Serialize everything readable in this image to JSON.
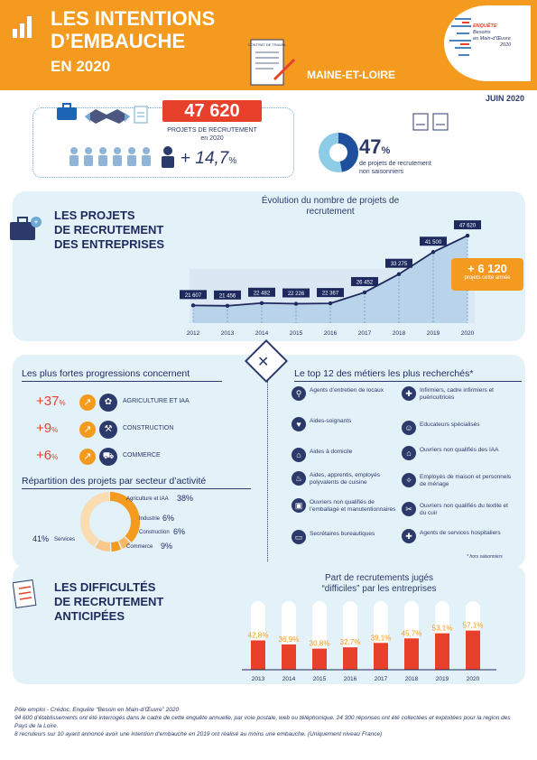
{
  "header": {
    "title_line1": "LES INTENTIONS",
    "title_line2": "D’EMBAUCHE",
    "year": "EN 2020",
    "region": "MAINE-ET-LOIRE",
    "doc_label": "CONTRAT DE TRAVAIL",
    "brand_line1": "ENQUÊTE",
    "brand_line2": "Besoins",
    "brand_line3": "en Main-d’Œuvre",
    "brand_line4": "2020",
    "colors": {
      "orange": "#f39a1f",
      "navy": "#2c3a6b",
      "red": "#e8412b",
      "light_blue": "#e3f1f9"
    }
  },
  "date": "JUIN 2020",
  "projects": {
    "value": "47 620",
    "caption_line1": "PROJETS DE RECRUTEMENT",
    "caption_line2": "en 2020",
    "growth_sign": "+",
    "growth_value": "14,7",
    "growth_unit": "%"
  },
  "non_seasonal": {
    "value": "47",
    "unit": "%",
    "fraction": 0.47,
    "caption_line1": "de projets de recrutement",
    "caption_line2": "non saisonniers"
  },
  "section_projects": {
    "title_line1": "LES PROJETS",
    "title_line2": "DE RECRUTEMENT",
    "title_line3": "DES ENTREPRISES",
    "gain_value": "+ 6 120",
    "gain_caption": "projets cette année"
  },
  "chart_data": [
    {
      "type": "line",
      "title": "Évolution du nombre de projets de recrutement",
      "x": [
        "2012",
        "2013",
        "2014",
        "2015",
        "2016",
        "2017",
        "2018",
        "2019",
        "2020"
      ],
      "values": [
        21607,
        21456,
        22482,
        22226,
        22367,
        26452,
        33275,
        41500,
        47620
      ],
      "labels": [
        "21 607",
        "21 456",
        "22 482",
        "22 226",
        "22 367",
        "26 452",
        "33 275",
        "41 500",
        "47 620"
      ]
    },
    {
      "type": "bar",
      "title": "Part de recrutements jugés “difficiles” par les entreprises",
      "categories": [
        "2013",
        "2014",
        "2015",
        "2016",
        "2017",
        "2018",
        "2019",
        "2020"
      ],
      "values": [
        42.8,
        36.9,
        30.8,
        32.7,
        39.1,
        45.7,
        53.1,
        57.1
      ],
      "labels": [
        "42,8",
        "36,9",
        "30,8",
        "32,7",
        "39,1",
        "45,7",
        "53,1",
        "57,1"
      ],
      "unit": "%"
    },
    {
      "type": "pie",
      "title": "Répartition des projets par secteur d’activité",
      "categories": [
        "Agriculture et IAA",
        "Industrie",
        "Construction",
        "Commerce",
        "Services"
      ],
      "values": [
        38,
        6,
        6,
        9,
        41
      ],
      "labels": [
        "38%",
        "6%",
        "6%",
        "9%",
        "41%"
      ]
    }
  ],
  "progressions": {
    "title": "Les plus fortes progressions concernent",
    "items": [
      {
        "pct": "+37",
        "unit": "%",
        "label": "AGRICULTURE ET IAA"
      },
      {
        "pct": "+9",
        "unit": "%",
        "label": "CONSTRUCTION"
      },
      {
        "pct": "+6",
        "unit": "%",
        "label": "COMMERCE"
      }
    ]
  },
  "sector_title": "Répartition des projets par secteur d’activité",
  "top_jobs": {
    "title": "Le top 12 des métiers les plus recherchés*",
    "left": [
      "Agents d’entretien de locaux",
      "Aides-soignants",
      "Aides à domicile",
      "Aides, apprentis, employés polyvalents de cuisine",
      "Ouvriers non qualifiés de l’emballage et manutentionnaires",
      "Secrétaires bureautiques"
    ],
    "right": [
      "Infirmiers, cadre infirmiers et puéricultrices",
      "Educateurs spécialisés",
      "Ouvriers non qualifiés des IAA",
      "Employés de maison et personnels de ménage",
      "Ouvriers non qualifiés du textile et du cuir",
      "Agents de services hospitaliers"
    ],
    "footnote": "* hors saisonniers"
  },
  "difficulties": {
    "title_line1": "LES DIFFICULTÉS",
    "title_line2": "DE RECRUTEMENT",
    "title_line3": "ANTICIPÉES"
  },
  "footer": {
    "line1": "Pôle emploi - Crédoc, Enquête “Besoin en Main-d’Œuvre” 2020",
    "line2": "94 600 d’établissements ont été interrogés dans le cadre de cette enquête annuelle, par voie postale, web ou téléphonique. 24 300 réponses ont été collectées et exploitées pour la region des Pays de la Loire.",
    "line3": "8 recruteurs sur 10 ayant annoncé avoir une intention d’embauche en 2019 ont réalisé au moins une embauche. (Uniquement niveau France)"
  }
}
